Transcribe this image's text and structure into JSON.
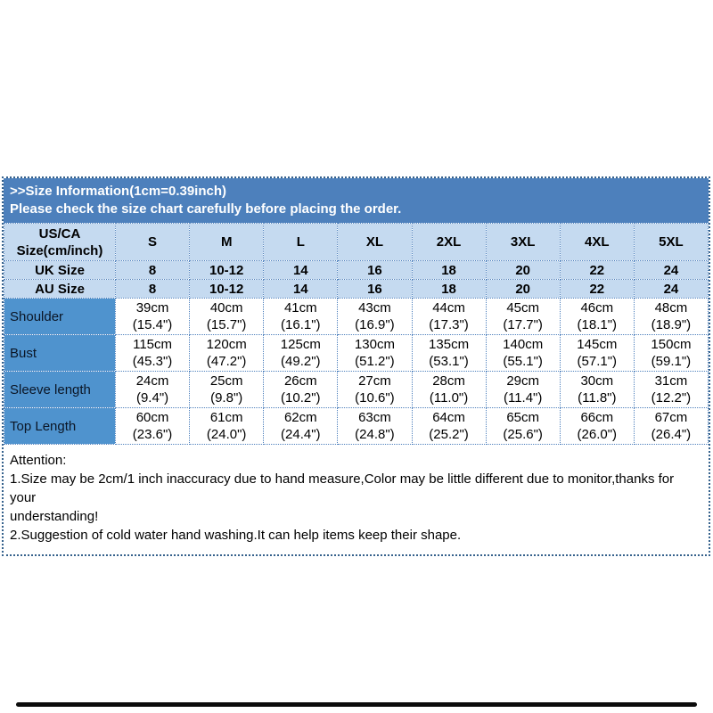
{
  "banner": {
    "line1": ">>Size Information(1cm=0.39inch)",
    "line2": "Please check the size chart carefully before placing the order."
  },
  "table": {
    "corner_line1": "US/CA",
    "corner_line2": "Size(cm/inch)",
    "sizes": [
      "S",
      "M",
      "L",
      "XL",
      "2XL",
      "3XL",
      "4XL",
      "5XL"
    ],
    "uk_label": "UK Size",
    "uk_values": [
      "8",
      "10-12",
      "14",
      "16",
      "18",
      "20",
      "22",
      "24"
    ],
    "au_label": "AU Size",
    "au_values": [
      "8",
      "10-12",
      "14",
      "16",
      "18",
      "20",
      "22",
      "24"
    ],
    "measurements": [
      {
        "label": "Shoulder",
        "values": [
          [
            "39cm",
            "(15.4\")"
          ],
          [
            "40cm",
            "(15.7\")"
          ],
          [
            "41cm",
            "(16.1\")"
          ],
          [
            "43cm",
            "(16.9\")"
          ],
          [
            "44cm",
            "(17.3\")"
          ],
          [
            "45cm",
            "(17.7\")"
          ],
          [
            "46cm",
            "(18.1\")"
          ],
          [
            "48cm",
            "(18.9\")"
          ]
        ]
      },
      {
        "label": "Bust",
        "values": [
          [
            "115cm",
            "(45.3\")"
          ],
          [
            "120cm",
            "(47.2\")"
          ],
          [
            "125cm",
            "(49.2\")"
          ],
          [
            "130cm",
            "(51.2\")"
          ],
          [
            "135cm",
            "(53.1\")"
          ],
          [
            "140cm",
            "(55.1\")"
          ],
          [
            "145cm",
            "(57.1\")"
          ],
          [
            "150cm",
            "(59.1\")"
          ]
        ]
      },
      {
        "label": "Sleeve length",
        "values": [
          [
            "24cm",
            "(9.4\")"
          ],
          [
            "25cm",
            "(9.8\")"
          ],
          [
            "26cm",
            "(10.2\")"
          ],
          [
            "27cm",
            "(10.6\")"
          ],
          [
            "28cm",
            "(11.0\")"
          ],
          [
            "29cm",
            "(11.4\")"
          ],
          [
            "30cm",
            "(11.8\")"
          ],
          [
            "31cm",
            "(12.2\")"
          ]
        ]
      },
      {
        "label": "Top Length",
        "values": [
          [
            "60cm",
            "(23.6\")"
          ],
          [
            "61cm",
            "(24.0\")"
          ],
          [
            "62cm",
            "(24.4\")"
          ],
          [
            "63cm",
            "(24.8\")"
          ],
          [
            "64cm",
            "(25.2\")"
          ],
          [
            "65cm",
            "(25.6\")"
          ],
          [
            "66cm",
            "(26.0\")"
          ],
          [
            "67cm",
            "(26.4\")"
          ]
        ]
      }
    ]
  },
  "attention": {
    "lines": [
      "Attention:",
      "1.Size may be 2cm/1 inch inaccuracy due to hand measure,Color may be little different due to monitor,thanks for your",
      "understanding!",
      "2.Suggestion of cold water hand washing.It can help items keep their shape."
    ]
  },
  "colors": {
    "banner_blue": "#4d80bc",
    "light_row_blue": "#c5daf0",
    "label_cell_blue": "#4f93ce",
    "cell_border_blue": "#4f81bd",
    "outer_border_blue": "#35618c",
    "divider_bar_black": "#0c0c0c"
  }
}
